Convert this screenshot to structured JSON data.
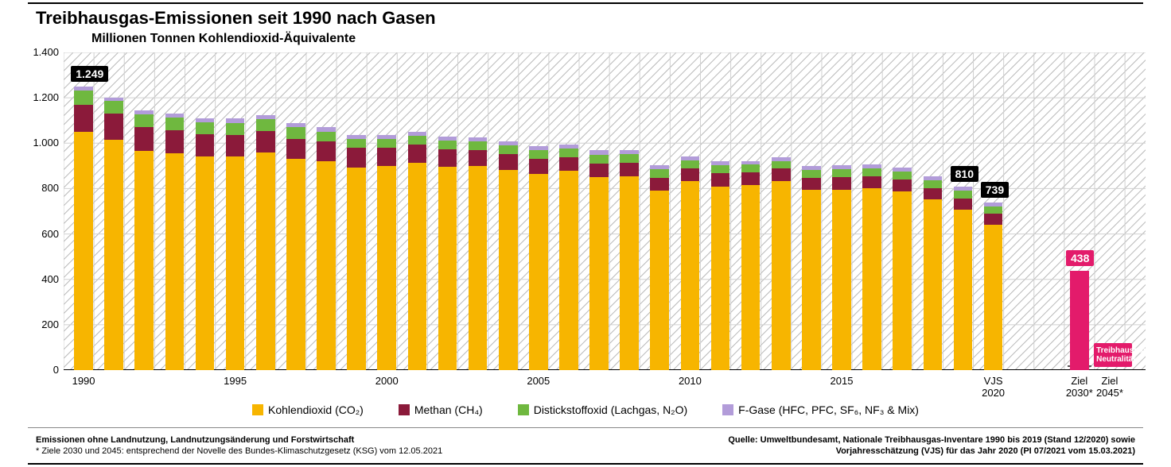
{
  "title": "Treibhausgas-Emissionen seit 1990 nach Gasen",
  "subtitle": "Millionen Tonnen Kohlendioxid-Äquivalente",
  "chart": {
    "type": "stacked-bar",
    "ylim": [
      0,
      1400
    ],
    "ytick_step": 200,
    "y_ticks": [
      "0",
      "200",
      "400",
      "600",
      "800",
      "1.000",
      "1.200",
      "1.400"
    ],
    "x_major": [
      {
        "idx": 0,
        "label": "1990"
      },
      {
        "idx": 5,
        "label": "1995"
      },
      {
        "idx": 10,
        "label": "2000"
      },
      {
        "idx": 15,
        "label": "2005"
      },
      {
        "idx": 20,
        "label": "2010"
      },
      {
        "idx": 25,
        "label": "2015"
      },
      {
        "idx": 30,
        "label": "VJS 2020"
      },
      {
        "idx": 31,
        "label": "Ziel 2030*"
      },
      {
        "idx": 32,
        "label": "Ziel 2045*"
      }
    ],
    "colors": {
      "co2": "#f7b500",
      "ch4": "#8b1a3a",
      "n2o": "#6fb83f",
      "fgas": "#b29cd9",
      "target": "#e31b6b",
      "grid": "#d0d0d0",
      "hatch": "#b8b8b8",
      "axis": "#000000",
      "bg": "#ffffff"
    },
    "bar_width": 0.62,
    "group_gap": 32,
    "series_keys": [
      "co2",
      "ch4",
      "n2o",
      "fgas"
    ],
    "data": [
      {
        "co2": 1050,
        "ch4": 120,
        "n2o": 62,
        "fgas": 17,
        "label": "1.249"
      },
      {
        "co2": 1015,
        "ch4": 115,
        "n2o": 57,
        "fgas": 15
      },
      {
        "co2": 965,
        "ch4": 105,
        "n2o": 57,
        "fgas": 17
      },
      {
        "co2": 955,
        "ch4": 103,
        "n2o": 55,
        "fgas": 18
      },
      {
        "co2": 940,
        "ch4": 100,
        "n2o": 52,
        "fgas": 18
      },
      {
        "co2": 940,
        "ch4": 97,
        "n2o": 52,
        "fgas": 19
      },
      {
        "co2": 960,
        "ch4": 93,
        "n2o": 53,
        "fgas": 19
      },
      {
        "co2": 930,
        "ch4": 90,
        "n2o": 50,
        "fgas": 20
      },
      {
        "co2": 920,
        "ch4": 87,
        "n2o": 43,
        "fgas": 21
      },
      {
        "co2": 893,
        "ch4": 87,
        "n2o": 37,
        "fgas": 20
      },
      {
        "co2": 898,
        "ch4": 83,
        "n2o": 37,
        "fgas": 18
      },
      {
        "co2": 913,
        "ch4": 80,
        "n2o": 39,
        "fgas": 19
      },
      {
        "co2": 897,
        "ch4": 77,
        "n2o": 37,
        "fgas": 19
      },
      {
        "co2": 898,
        "ch4": 73,
        "n2o": 37,
        "fgas": 18
      },
      {
        "co2": 883,
        "ch4": 68,
        "n2o": 40,
        "fgas": 18
      },
      {
        "co2": 865,
        "ch4": 67,
        "n2o": 37,
        "fgas": 18
      },
      {
        "co2": 877,
        "ch4": 62,
        "n2o": 37,
        "fgas": 18
      },
      {
        "co2": 850,
        "ch4": 60,
        "n2o": 40,
        "fgas": 18
      },
      {
        "co2": 853,
        "ch4": 60,
        "n2o": 40,
        "fgas": 18
      },
      {
        "co2": 790,
        "ch4": 58,
        "n2o": 38,
        "fgas": 17
      },
      {
        "co2": 832,
        "ch4": 58,
        "n2o": 35,
        "fgas": 16
      },
      {
        "co2": 810,
        "ch4": 58,
        "n2o": 35,
        "fgas": 16
      },
      {
        "co2": 815,
        "ch4": 58,
        "n2o": 33,
        "fgas": 16
      },
      {
        "co2": 832,
        "ch4": 57,
        "n2o": 33,
        "fgas": 16
      },
      {
        "co2": 793,
        "ch4": 55,
        "n2o": 35,
        "fgas": 16
      },
      {
        "co2": 795,
        "ch4": 55,
        "n2o": 35,
        "fgas": 17
      },
      {
        "co2": 800,
        "ch4": 53,
        "n2o": 35,
        "fgas": 17
      },
      {
        "co2": 786,
        "ch4": 53,
        "n2o": 35,
        "fgas": 17
      },
      {
        "co2": 753,
        "ch4": 50,
        "n2o": 33,
        "fgas": 17
      },
      {
        "co2": 707,
        "ch4": 50,
        "n2o": 35,
        "fgas": 18,
        "label": "810"
      },
      {
        "co2": 640,
        "ch4": 48,
        "n2o": 34,
        "fgas": 17,
        "label": "739"
      }
    ],
    "targets": [
      {
        "value": 438,
        "label": "438",
        "xlabel": "Ziel 2030*"
      },
      {
        "value": 0,
        "label": "",
        "xlabel": "Ziel 2045*",
        "neutral_box": "Treibhausgas-\nNeutralität"
      }
    ]
  },
  "legend": [
    {
      "key": "co2",
      "label": "Kohlendioxid (CO₂)"
    },
    {
      "key": "ch4",
      "label": "Methan (CH₄)"
    },
    {
      "key": "n2o",
      "label": "Distickstoffoxid (Lachgas, N₂O)"
    },
    {
      "key": "fgas",
      "label": "F-Gase (HFC, PFC, SF₆, NF₃ & Mix)"
    }
  ],
  "footer": {
    "left1": "Emissionen ohne Landnutzung, Landnutzungsänderung und Forstwirtschaft",
    "left2": "* Ziele 2030 und 2045: entsprechend der Novelle des Bundes-Klimaschutzgesetz (KSG) vom 12.05.2021",
    "right1": "Quelle: Umweltbundesamt, Nationale Treibhausgas-Inventare 1990 bis 2019 (Stand 12/2020) sowie",
    "right2": "Vorjahresschätzung (VJS) für das Jahr 2020 (PI 07/2021 vom 15.03.2021)"
  }
}
